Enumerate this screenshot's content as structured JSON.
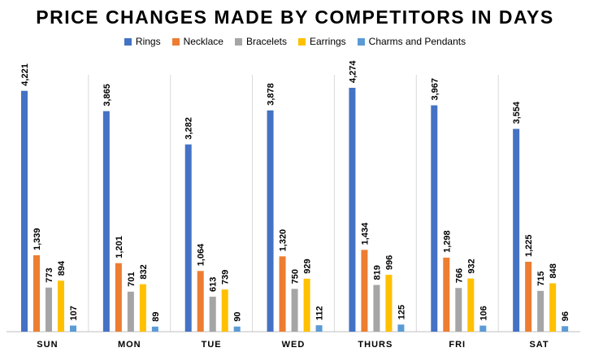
{
  "chart_data": {
    "type": "bar",
    "title": "PRICE CHANGES MADE BY COMPETITORS IN DAYS",
    "categories": [
      "SUN",
      "MON",
      "TUE",
      "WED",
      "THURS",
      "FRI",
      "SAT"
    ],
    "series": [
      {
        "name": "Rings",
        "color": "#4472C4",
        "values": [
          4221,
          3865,
          3282,
          3878,
          4274,
          3967,
          3554
        ],
        "labels": [
          "4,221",
          "3,865",
          "3,282",
          "3,878",
          "4,274",
          "3,967",
          "3,554"
        ]
      },
      {
        "name": "Necklace",
        "color": "#ED7D31",
        "values": [
          1339,
          1201,
          1064,
          1320,
          1434,
          1298,
          1225
        ],
        "labels": [
          "1,339",
          "1,201",
          "1,064",
          "1,320",
          "1,434",
          "1,298",
          "1,225"
        ]
      },
      {
        "name": "Bracelets",
        "color": "#A5A5A5",
        "values": [
          773,
          701,
          613,
          750,
          819,
          766,
          715
        ],
        "labels": [
          "773",
          "701",
          "613",
          "750",
          "819",
          "766",
          "715"
        ]
      },
      {
        "name": "Earrings",
        "color": "#FFC000",
        "values": [
          894,
          832,
          739,
          929,
          996,
          932,
          848
        ],
        "labels": [
          "894",
          "832",
          "739",
          "929",
          "996",
          "932",
          "848"
        ]
      },
      {
        "name": "Charms and Pendants",
        "color": "#5B9BD5",
        "values": [
          107,
          89,
          90,
          112,
          125,
          106,
          96
        ],
        "labels": [
          "107",
          "89",
          "90",
          "112",
          "125",
          "106",
          "96"
        ]
      }
    ],
    "xlabel": "",
    "ylabel": "",
    "grid": false,
    "legend_position": "top"
  }
}
